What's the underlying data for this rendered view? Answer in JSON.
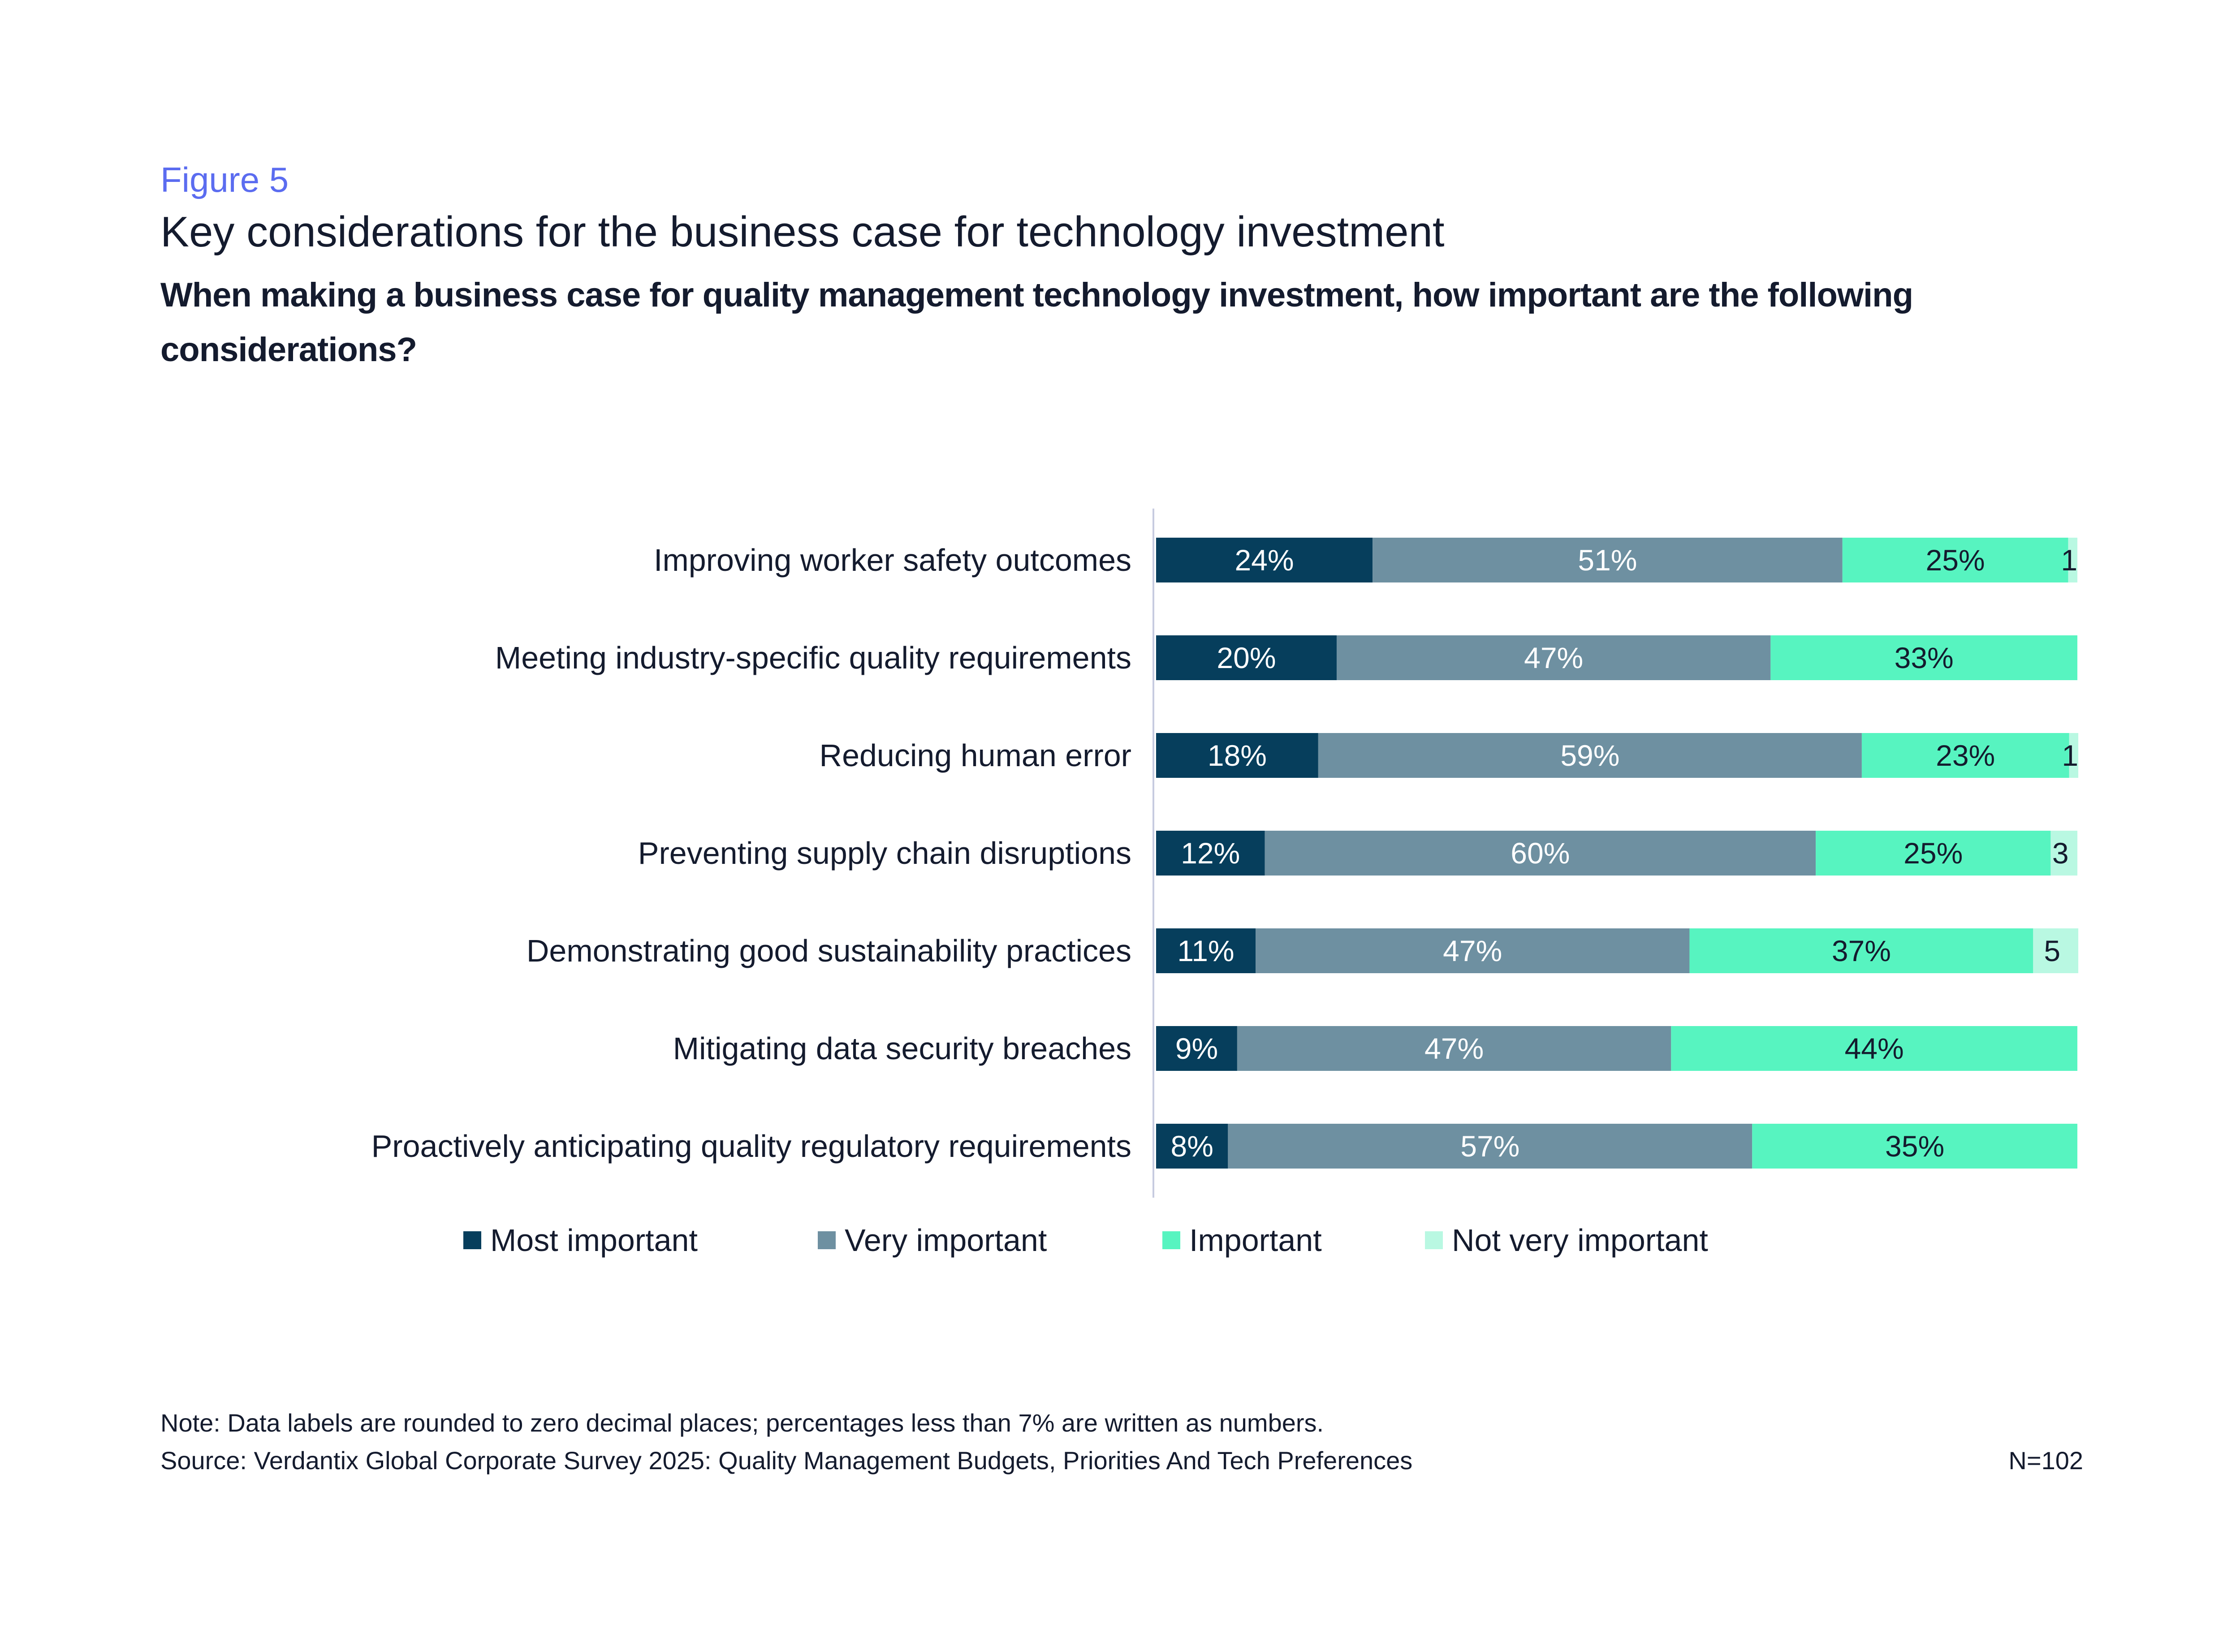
{
  "figure_label": "Figure 5",
  "title": "Key considerations for the business case for technology investment",
  "question": "When making a business case for quality management technology investment, how important are the following considerations?",
  "note": "Note: Data labels are rounded to zero decimal places; percentages less than 7% are written as numbers.",
  "source": "Source: Verdantix Global Corporate Survey 2025: Quality Management Budgets, Priorities And Tech Preferences",
  "sample_size": "N=102",
  "chart_data": {
    "type": "bar",
    "orientation": "horizontal",
    "stacked": true,
    "xlim": [
      0,
      100
    ],
    "grid": false,
    "legend_position": "bottom",
    "categories": [
      "Improving worker safety outcomes",
      "Meeting industry-specific quality requirements",
      "Reducing human error",
      "Preventing supply chain disruptions",
      "Demonstrating good sustainability practices",
      "Mitigating data security breaches",
      "Proactively anticipating quality regulatory requirements"
    ],
    "series": [
      {
        "name": "Most important",
        "color": "#063e5c",
        "label_color": "#ffffff",
        "values": [
          23.5,
          19.6,
          17.6,
          11.8,
          10.8,
          8.8,
          7.8
        ],
        "labels": [
          "24%",
          "20%",
          "18%",
          "12%",
          "11%",
          "9%",
          "8%"
        ]
      },
      {
        "name": "Very important",
        "color": "#6e90a1",
        "label_color": "#ffffff",
        "values": [
          51.0,
          47.1,
          59.0,
          59.8,
          47.1,
          47.1,
          56.9
        ],
        "labels": [
          "51%",
          "47%",
          "59%",
          "60%",
          "47%",
          "47%",
          "57%"
        ]
      },
      {
        "name": "Important",
        "color": "#57f4c0",
        "label_color": "#141b2e",
        "values": [
          24.5,
          33.3,
          22.5,
          25.5,
          37.3,
          44.1,
          35.3
        ],
        "labels": [
          "25%",
          "33%",
          "23%",
          "25%",
          "37%",
          "44%",
          "35%"
        ]
      },
      {
        "name": "Not very important",
        "color": "#b9f8e2",
        "label_color": "#141b2e",
        "values": [
          1.0,
          0,
          1.0,
          2.9,
          4.9,
          0,
          0
        ],
        "labels": [
          "1",
          "",
          "1",
          "3",
          "5",
          "",
          ""
        ]
      }
    ]
  }
}
